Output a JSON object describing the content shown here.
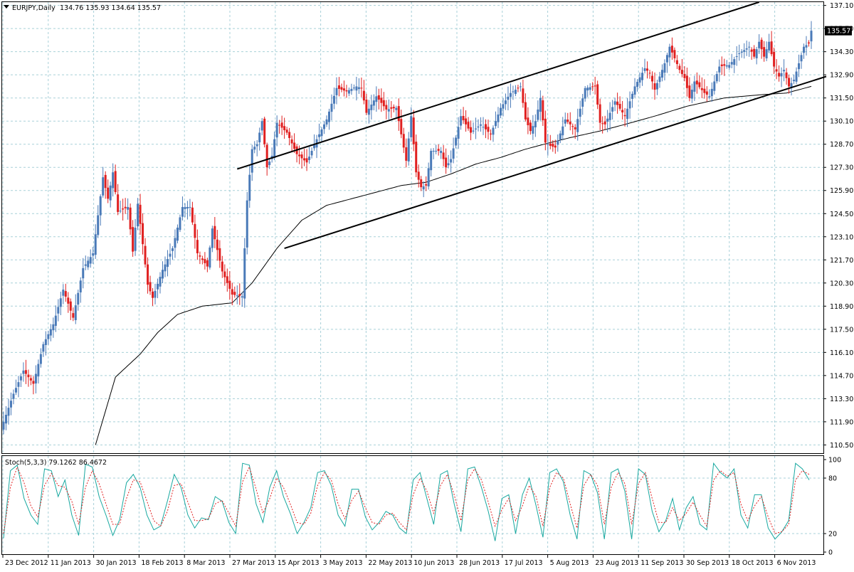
{
  "header": {
    "symbol": "EURJPY,Daily",
    "ohlc": "134.76 135.93 134.64 135.57"
  },
  "price_label": "135.57",
  "osc_header": "Stoch(5,3,3) 79.1262 86.4672",
  "colors": {
    "up": "#4a7ab8",
    "down": "#e02020",
    "grid": "#a8d0d8",
    "stoch_main": "#18a8a0",
    "stoch_signal": "#e02020",
    "trend": "#000000"
  },
  "chart_data": [
    {
      "type": "candlestick",
      "title": "EURJPY,Daily",
      "ylim": [
        110.0,
        137.3
      ],
      "y_ticks": [
        "137.10",
        "135.70",
        "134.30",
        "132.90",
        "131.50",
        "130.10",
        "128.70",
        "127.30",
        "125.90",
        "124.50",
        "123.10",
        "121.70",
        "120.30",
        "118.90",
        "117.50",
        "116.10",
        "114.70",
        "113.30",
        "111.90",
        "110.50"
      ],
      "x_ticks": [
        "23 Dec 2012",
        "11 Jan 2013",
        "30 Jan 2013",
        "18 Feb 2013",
        "8 Mar 2013",
        "27 Mar 2013",
        "15 Apr 2013",
        "3 May 2013",
        "22 May 2013",
        "10 Jun 2013",
        "28 Jun 2013",
        "17 Jul 2013",
        "5 Aug 2013",
        "23 Aug 2013",
        "11 Sep 2013",
        "30 Sep 2013",
        "18 Oct 2013",
        "6 Nov 2013"
      ],
      "last_close": 135.57,
      "anchors": [
        [
          0,
          111.9
        ],
        [
          4,
          113.6
        ],
        [
          8,
          115.0
        ],
        [
          12,
          114.2
        ],
        [
          16,
          116.6
        ],
        [
          20,
          117.8
        ],
        [
          24,
          119.9
        ],
        [
          28,
          118.2
        ],
        [
          32,
          121.2
        ],
        [
          36,
          122.1
        ],
        [
          40,
          126.7
        ],
        [
          42,
          125.4
        ],
        [
          44,
          127.0
        ],
        [
          46,
          124.6
        ],
        [
          50,
          124.9
        ],
        [
          52,
          122.2
        ],
        [
          54,
          125.1
        ],
        [
          58,
          120.2
        ],
        [
          60,
          119.4
        ],
        [
          64,
          121.1
        ],
        [
          68,
          122.4
        ],
        [
          72,
          124.9
        ],
        [
          75,
          124.9
        ],
        [
          78,
          122.1
        ],
        [
          82,
          121.3
        ],
        [
          84,
          123.6
        ],
        [
          88,
          121.0
        ],
        [
          92,
          119.6
        ],
        [
          96,
          119.5
        ],
        [
          98,
          125.3
        ],
        [
          100,
          128.4
        ],
        [
          102,
          128.7
        ],
        [
          104,
          130.1
        ],
        [
          106,
          127.3
        ],
        [
          108,
          128.0
        ],
        [
          110,
          130.0
        ],
        [
          114,
          129.4
        ],
        [
          118,
          128.1
        ],
        [
          122,
          127.6
        ],
        [
          126,
          129.0
        ],
        [
          130,
          130.2
        ],
        [
          134,
          132.1
        ],
        [
          138,
          131.9
        ],
        [
          142,
          132.2
        ],
        [
          144,
          132.1
        ],
        [
          146,
          130.6
        ],
        [
          150,
          131.6
        ],
        [
          154,
          130.8
        ],
        [
          158,
          130.9
        ],
        [
          162,
          127.7
        ],
        [
          164,
          130.4
        ],
        [
          166,
          127.0
        ],
        [
          168,
          126.1
        ],
        [
          170,
          126.2
        ],
        [
          172,
          128.3
        ],
        [
          176,
          128.3
        ],
        [
          178,
          127.3
        ],
        [
          180,
          127.8
        ],
        [
          184,
          130.4
        ],
        [
          188,
          129.4
        ],
        [
          192,
          129.9
        ],
        [
          196,
          129.3
        ],
        [
          200,
          130.9
        ],
        [
          204,
          131.8
        ],
        [
          208,
          132.2
        ],
        [
          210,
          130.2
        ],
        [
          212,
          129.5
        ],
        [
          214,
          130.1
        ],
        [
          216,
          131.5
        ],
        [
          218,
          128.8
        ],
        [
          220,
          128.6
        ],
        [
          222,
          128.5
        ],
        [
          226,
          130.2
        ],
        [
          230,
          129.6
        ],
        [
          234,
          132.1
        ],
        [
          238,
          132.2
        ],
        [
          240,
          130.0
        ],
        [
          242,
          129.9
        ],
        [
          246,
          131.3
        ],
        [
          250,
          130.4
        ],
        [
          254,
          132.2
        ],
        [
          258,
          133.3
        ],
        [
          260,
          133.0
        ],
        [
          262,
          132.0
        ],
        [
          266,
          133.6
        ],
        [
          268,
          134.6
        ],
        [
          272,
          133.2
        ],
        [
          274,
          132.7
        ],
        [
          276,
          131.5
        ],
        [
          278,
          132.5
        ],
        [
          282,
          131.8
        ],
        [
          284,
          131.6
        ],
        [
          288,
          133.4
        ],
        [
          292,
          133.5
        ],
        [
          296,
          134.2
        ],
        [
          300,
          134.6
        ],
        [
          302,
          134.0
        ],
        [
          304,
          134.9
        ],
        [
          306,
          134.0
        ],
        [
          308,
          134.9
        ],
        [
          310,
          133.4
        ],
        [
          312,
          132.8
        ],
        [
          314,
          133.2
        ],
        [
          316,
          132.2
        ],
        [
          318,
          132.6
        ],
        [
          320,
          133.6
        ],
        [
          322,
          134.6
        ],
        [
          324,
          134.8
        ],
        [
          325,
          135.57
        ]
      ],
      "sma_anchors": [
        [
          37,
          110.5
        ],
        [
          45,
          114.6
        ],
        [
          55,
          116.0
        ],
        [
          62,
          117.3
        ],
        [
          70,
          118.4
        ],
        [
          80,
          118.9
        ],
        [
          92,
          119.1
        ],
        [
          100,
          120.3
        ],
        [
          110,
          122.4
        ],
        [
          120,
          124.1
        ],
        [
          130,
          125.0
        ],
        [
          140,
          125.4
        ],
        [
          150,
          125.8
        ],
        [
          160,
          126.2
        ],
        [
          170,
          126.4
        ],
        [
          180,
          126.9
        ],
        [
          190,
          127.5
        ],
        [
          200,
          127.9
        ],
        [
          210,
          128.4
        ],
        [
          220,
          128.8
        ],
        [
          228,
          129.1
        ],
        [
          240,
          129.5
        ],
        [
          250,
          129.9
        ],
        [
          262,
          130.4
        ],
        [
          275,
          131.0
        ],
        [
          290,
          131.5
        ],
        [
          305,
          131.7
        ],
        [
          315,
          131.8
        ],
        [
          325,
          132.2
        ]
      ],
      "trendlines": [
        {
          "from": [
            94,
            127.2
          ],
          "to": [
            304,
            137.3
          ]
        },
        {
          "from": [
            113,
            122.4
          ],
          "to": [
            331,
            132.8
          ]
        }
      ]
    },
    {
      "type": "line",
      "title": "Stoch(5,3,3) 79.1262 86.4672",
      "ylim": [
        0,
        100
      ],
      "y_ticks": [
        "100",
        "80",
        "20",
        "0"
      ],
      "levels": [
        80,
        20
      ],
      "series": [
        {
          "name": "main",
          "values": [
            15,
            88,
            94,
            58,
            40,
            30,
            90,
            88,
            60,
            78,
            40,
            18,
            95,
            92,
            60,
            40,
            18,
            35,
            75,
            84,
            70,
            40,
            24,
            28,
            55,
            84,
            70,
            40,
            26,
            37,
            35,
            60,
            55,
            32,
            20,
            96,
            94,
            52,
            32,
            70,
            88,
            60,
            42,
            20,
            32,
            48,
            86,
            88,
            72,
            40,
            28,
            68,
            68,
            38,
            24,
            32,
            44,
            40,
            26,
            20,
            78,
            86,
            58,
            30,
            84,
            88,
            52,
            22,
            90,
            92,
            70,
            44,
            12,
            58,
            62,
            20,
            62,
            80,
            50,
            16,
            86,
            90,
            76,
            40,
            14,
            88,
            84,
            64,
            14,
            86,
            90,
            66,
            14,
            90,
            84,
            44,
            22,
            34,
            58,
            24,
            48,
            60,
            30,
            24,
            96,
            86,
            80,
            90,
            40,
            26,
            62,
            62,
            26,
            14,
            22,
            34,
            96,
            90,
            78
          ]
        },
        {
          "name": "signal",
          "values": [
            20,
            70,
            92,
            75,
            50,
            38,
            72,
            85,
            72,
            70,
            55,
            30,
            70,
            88,
            74,
            52,
            30,
            30,
            58,
            78,
            76,
            55,
            34,
            28,
            44,
            72,
            74,
            54,
            34,
            34,
            36,
            52,
            56,
            42,
            28,
            76,
            92,
            68,
            42,
            58,
            80,
            70,
            52,
            32,
            30,
            42,
            72,
            86,
            78,
            52,
            36,
            56,
            66,
            48,
            32,
            30,
            40,
            42,
            32,
            24,
            62,
            80,
            66,
            42,
            72,
            84,
            62,
            34,
            78,
            90,
            78,
            54,
            28,
            46,
            58,
            34,
            50,
            72,
            60,
            28,
            70,
            86,
            80,
            52,
            26,
            72,
            84,
            72,
            30,
            70,
            86,
            74,
            30,
            74,
            86,
            58,
            32,
            32,
            48,
            34,
            42,
            54,
            40,
            28,
            78,
            88,
            82,
            86,
            52,
            34,
            50,
            60,
            38,
            20,
            22,
            30,
            78,
            88,
            84
          ]
        }
      ]
    }
  ]
}
